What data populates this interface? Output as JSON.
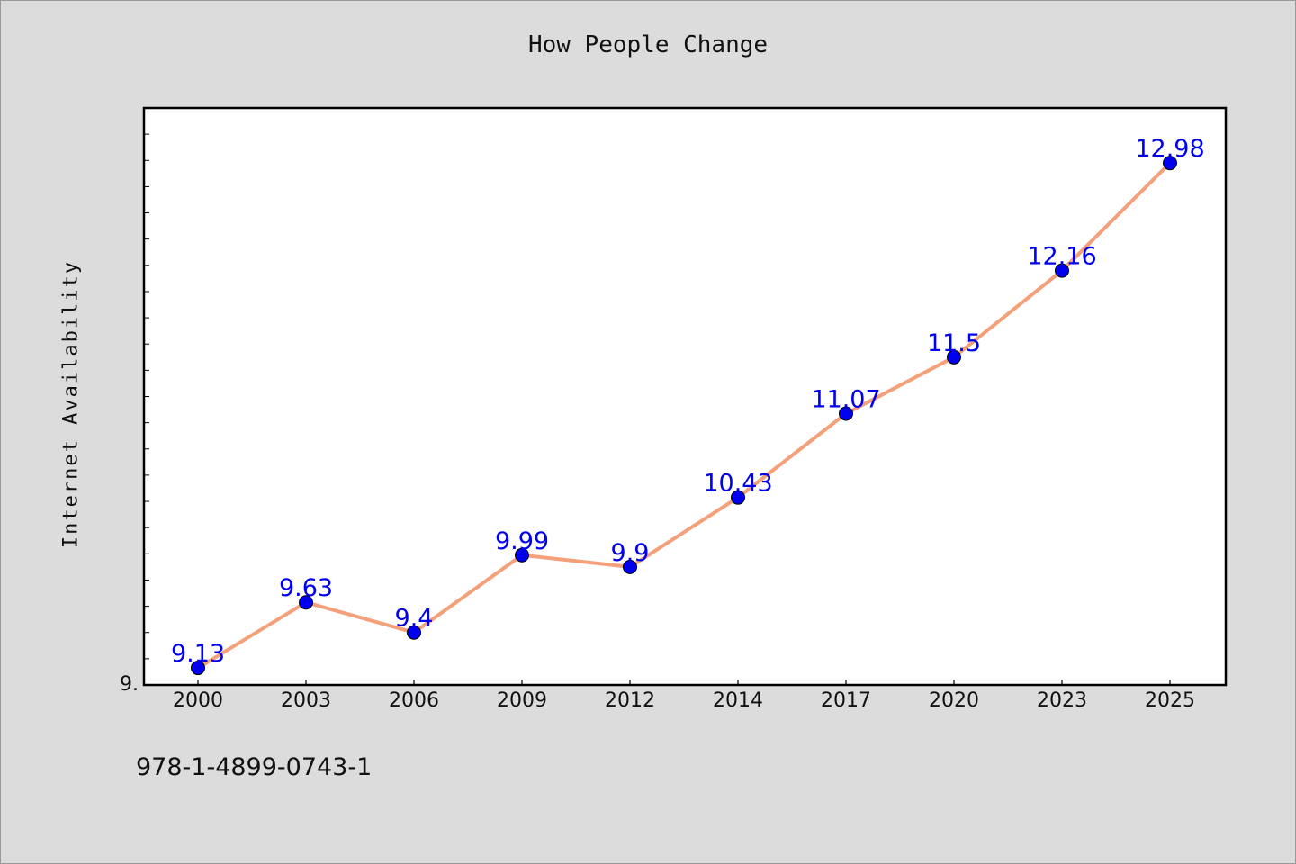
{
  "chart_data": {
    "type": "line",
    "title": "How People Change",
    "xlabel": "",
    "ylabel": "Internet Availability",
    "categories": [
      "2000",
      "2003",
      "2006",
      "2009",
      "2012",
      "2014",
      "2017",
      "2020",
      "2023",
      "2025"
    ],
    "series": [
      {
        "values": [
          9.13,
          9.63,
          9.4,
          9.99,
          9.9,
          10.43,
          11.07,
          11.5,
          12.16,
          12.98
        ]
      }
    ],
    "data_labels": [
      "9.13",
      "9.63",
      "9.4",
      "9.99",
      "9.9",
      "10.43",
      "11.07",
      "11.5",
      "12.16",
      "12.98"
    ],
    "y_tick_labels": [
      "9."
    ],
    "ylim": [
      9.0,
      13.4
    ],
    "minor_tick_step": 0.2,
    "grid": false,
    "colors": {
      "line": "#f4a07a",
      "marker": "#0000ee",
      "data_label": "#0000ee",
      "plot_background": "#ffffff",
      "figure_background": "#dcdcdc"
    }
  },
  "footer": {
    "isbn": "978-1-4899-0743-1"
  }
}
